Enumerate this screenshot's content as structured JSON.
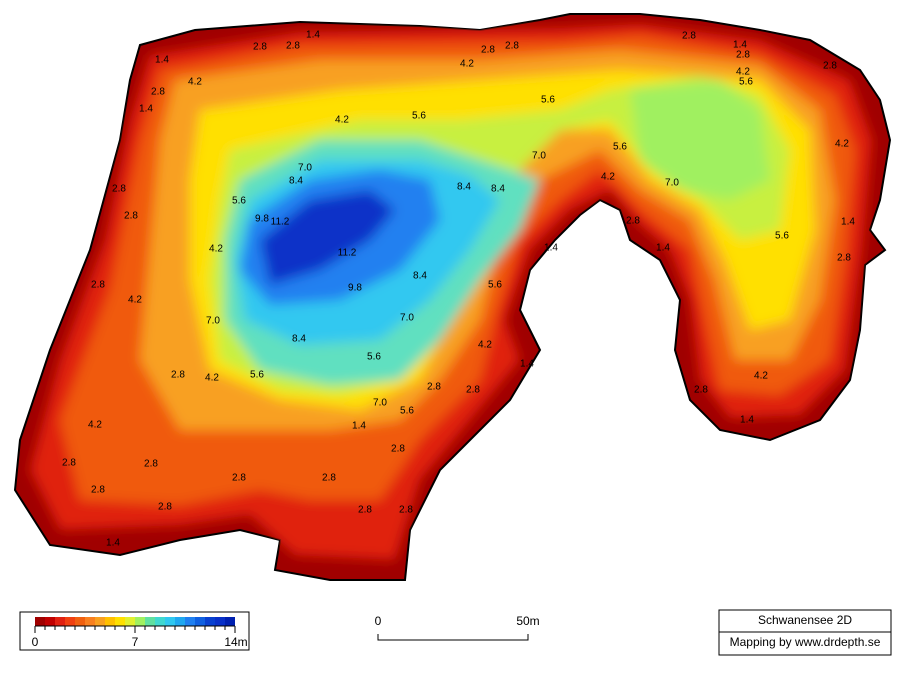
{
  "contour_labels": [
    "2.8",
    "2.8",
    "1.4",
    "1.4",
    "4.2",
    "2.8",
    "1.4",
    "2.8",
    "2.8",
    "4.2",
    "2.8",
    "1.4",
    "2.8",
    "4.2",
    "5.6",
    "2.8",
    "5.6",
    "4.2",
    "5.6",
    "7.0",
    "5.6",
    "4.2",
    "7.0",
    "4.2",
    "7.0",
    "8.4",
    "8.4",
    "8.4",
    "5.6",
    "9.8",
    "11.2",
    "2.8",
    "2.8",
    "2.8",
    "1.4",
    "1.4",
    "5.6",
    "2.8",
    "4.2",
    "1.4",
    "11.2",
    "8.4",
    "2.8",
    "4.2",
    "9.8",
    "5.6",
    "7.0",
    "7.0",
    "8.4",
    "4.2",
    "5.6",
    "1.4",
    "2.8",
    "4.2",
    "5.6",
    "2.8",
    "2.8",
    "2.8",
    "4.2",
    "7.0",
    "5.6",
    "1.4",
    "4.2",
    "2.8",
    "2.8",
    "2.8",
    "2.8",
    "2.8",
    "2.8",
    "2.8",
    "2.8",
    "2.8",
    "1.4",
    "1.4"
  ],
  "legend": {
    "labels": [
      "0",
      "7",
      "14m"
    ]
  },
  "scale_bar": {
    "labels": [
      "0",
      "50m"
    ]
  },
  "title_box": {
    "title": "Schwanensee 2D",
    "credit": "Mapping by www.drdepth.se"
  }
}
